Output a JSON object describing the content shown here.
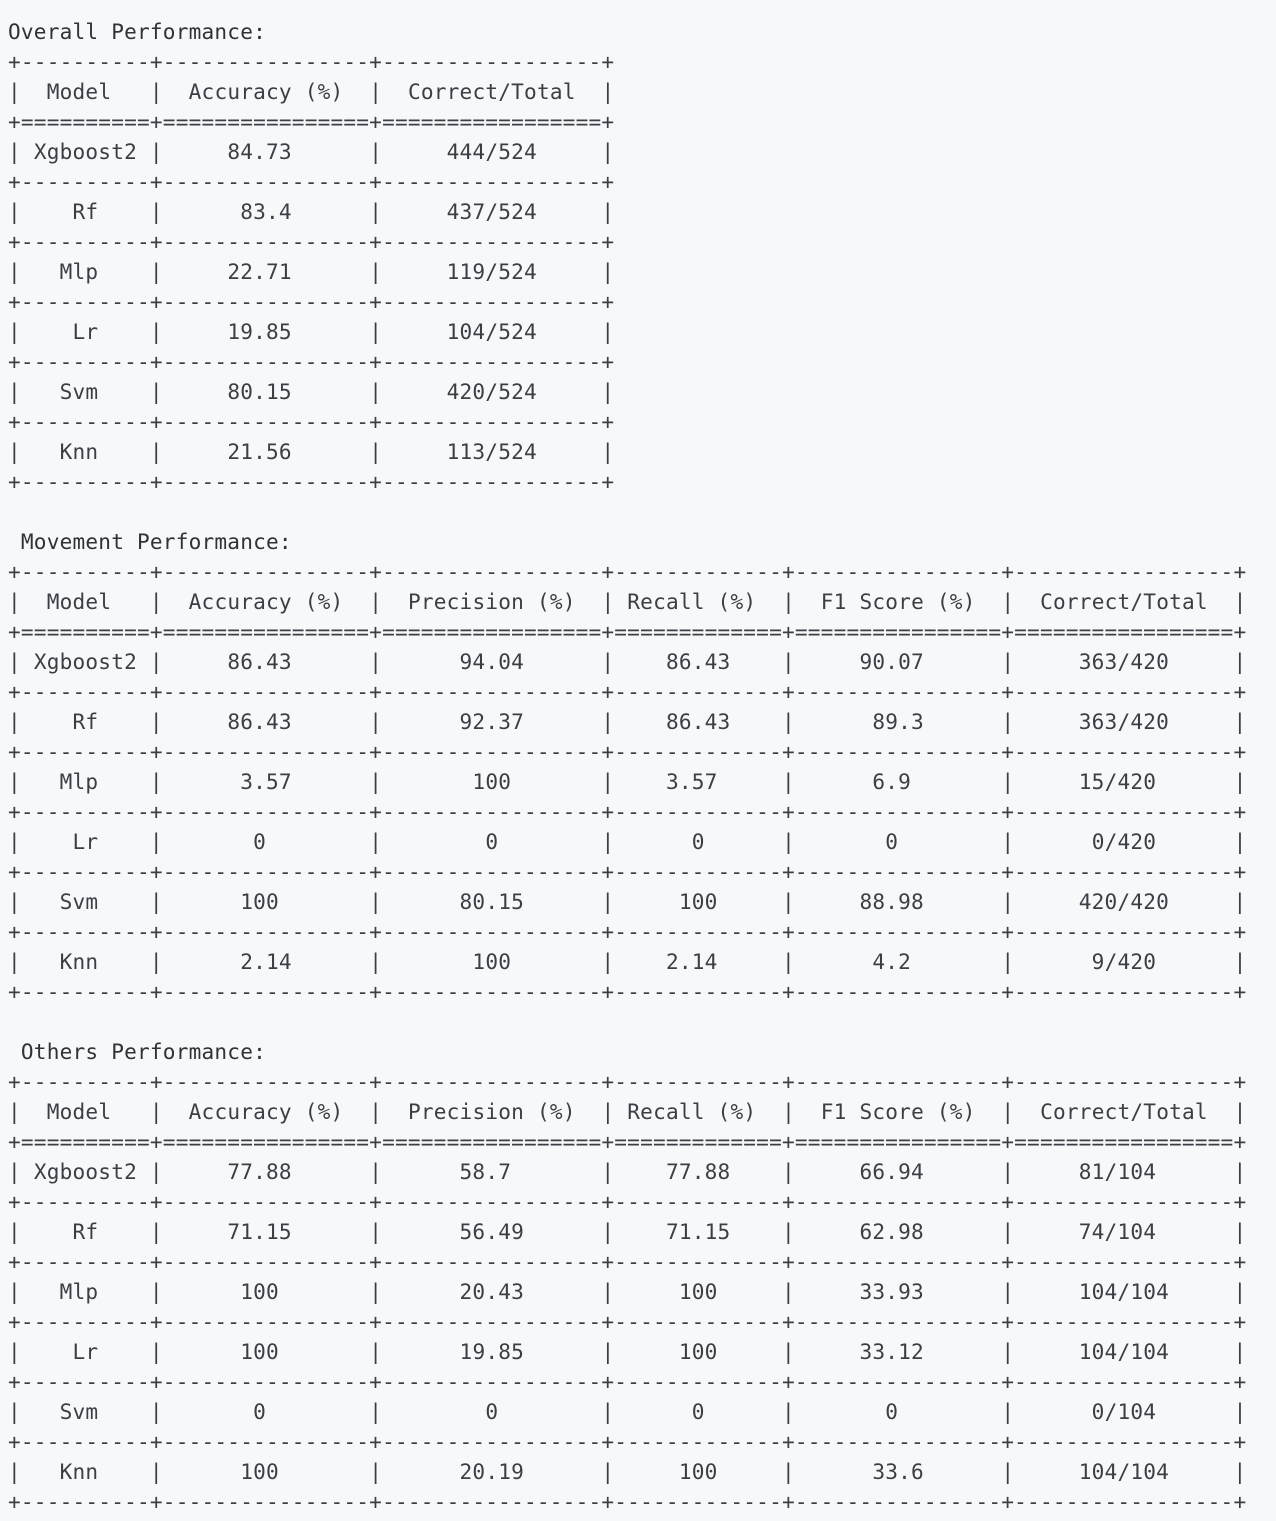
{
  "sections": [
    {
      "title": "Overall Performance:",
      "indent": "",
      "headers": [
        "Model",
        "Accuracy (%)",
        "Correct/Total"
      ],
      "rows": [
        [
          "Xgboost2",
          "84.73",
          "444/524"
        ],
        [
          "Rf",
          "83.4",
          "437/524"
        ],
        [
          "Mlp",
          "22.71",
          "119/524"
        ],
        [
          "Lr",
          "19.85",
          "104/524"
        ],
        [
          "Svm",
          "80.15",
          "420/524"
        ],
        [
          "Knn",
          "21.56",
          "113/524"
        ]
      ]
    },
    {
      "title": "Movement Performance:",
      "indent": " ",
      "headers": [
        "Model",
        "Accuracy (%)",
        "Precision (%)",
        "Recall (%)",
        "F1 Score (%)",
        "Correct/Total"
      ],
      "rows": [
        [
          "Xgboost2",
          "86.43",
          "94.04",
          "86.43",
          "90.07",
          "363/420"
        ],
        [
          "Rf",
          "86.43",
          "92.37",
          "86.43",
          "89.3",
          "363/420"
        ],
        [
          "Mlp",
          "3.57",
          "100",
          "3.57",
          "6.9",
          "15/420"
        ],
        [
          "Lr",
          "0",
          "0",
          "0",
          "0",
          "0/420"
        ],
        [
          "Svm",
          "100",
          "80.15",
          "100",
          "88.98",
          "420/420"
        ],
        [
          "Knn",
          "2.14",
          "100",
          "2.14",
          "4.2",
          "9/420"
        ]
      ]
    },
    {
      "title": "Others Performance:",
      "indent": " ",
      "headers": [
        "Model",
        "Accuracy (%)",
        "Precision (%)",
        "Recall (%)",
        "F1 Score (%)",
        "Correct/Total"
      ],
      "rows": [
        [
          "Xgboost2",
          "77.88",
          "58.7",
          "77.88",
          "66.94",
          "81/104"
        ],
        [
          "Rf",
          "71.15",
          "56.49",
          "71.15",
          "62.98",
          "74/104"
        ],
        [
          "Mlp",
          "100",
          "20.43",
          "100",
          "33.93",
          "104/104"
        ],
        [
          "Lr",
          "100",
          "19.85",
          "100",
          "33.12",
          "104/104"
        ],
        [
          "Svm",
          "0",
          "0",
          "0",
          "0",
          "0/104"
        ],
        [
          "Knn",
          "100",
          "20.19",
          "100",
          "33.6",
          "104/104"
        ]
      ]
    }
  ]
}
